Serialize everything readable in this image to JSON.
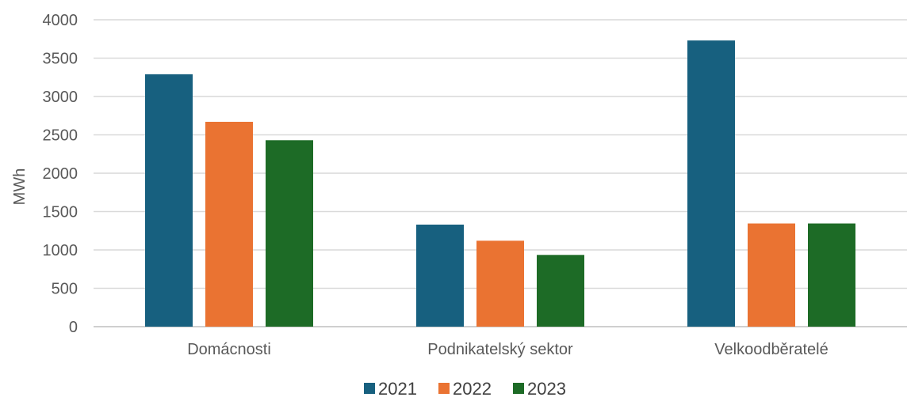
{
  "chart_data": {
    "type": "bar",
    "title": "",
    "xlabel": "",
    "ylabel": "MWh",
    "ylim": [
      0,
      4000
    ],
    "yticks": [
      0,
      500,
      1000,
      1500,
      2000,
      2500,
      3000,
      3500,
      4000
    ],
    "grid": true,
    "legend_position": "bottom",
    "categories": [
      "Domácnosti",
      "Podnikatelský sektor",
      "Velkoodběratelé"
    ],
    "series": [
      {
        "name": "2021",
        "color": "#17607f",
        "values": [
          3290,
          1330,
          3730
        ]
      },
      {
        "name": "2022",
        "color": "#ea7332",
        "values": [
          2670,
          1120,
          1345
        ]
      },
      {
        "name": "2023",
        "color": "#1d6b26",
        "values": [
          2430,
          935,
          1345
        ]
      }
    ]
  }
}
